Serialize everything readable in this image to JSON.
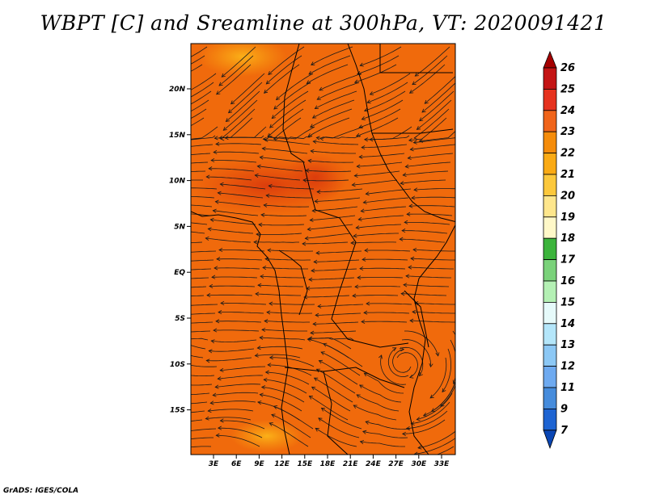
{
  "title": "WBPT [C] and Sreamline at 300hPa, VT: 2020091421",
  "credit": "GrADS: IGES/COLA",
  "map": {
    "lat_ticks": [
      "20N",
      "15N",
      "10N",
      "5N",
      "EQ",
      "5S",
      "10S",
      "15S"
    ],
    "lon_ticks": [
      "3E",
      "6E",
      "9E",
      "12E",
      "15E",
      "18E",
      "21E",
      "24E",
      "27E",
      "30E",
      "33E"
    ],
    "colors": {
      "base": "#f06a0c",
      "warm_patch": "#e0420e",
      "cool_patch": "#f8a010",
      "coast": "#000000"
    }
  },
  "colorbar": {
    "levels": [
      "26",
      "25",
      "24",
      "23",
      "22",
      "21",
      "20",
      "19",
      "18",
      "17",
      "16",
      "15",
      "14",
      "13",
      "12",
      "11",
      "9",
      "7"
    ],
    "colors": [
      "#a50000",
      "#c41414",
      "#e6321e",
      "#f0641a",
      "#f58c0a",
      "#faaa14",
      "#fcc83c",
      "#fee68c",
      "#fff8c8",
      "#3cb43c",
      "#7ad27a",
      "#b4f0b4",
      "#e6fafa",
      "#b4e6fa",
      "#8cc8f5",
      "#6eaaf0",
      "#468cdc",
      "#1e64d2",
      "#0a46b4"
    ]
  }
}
